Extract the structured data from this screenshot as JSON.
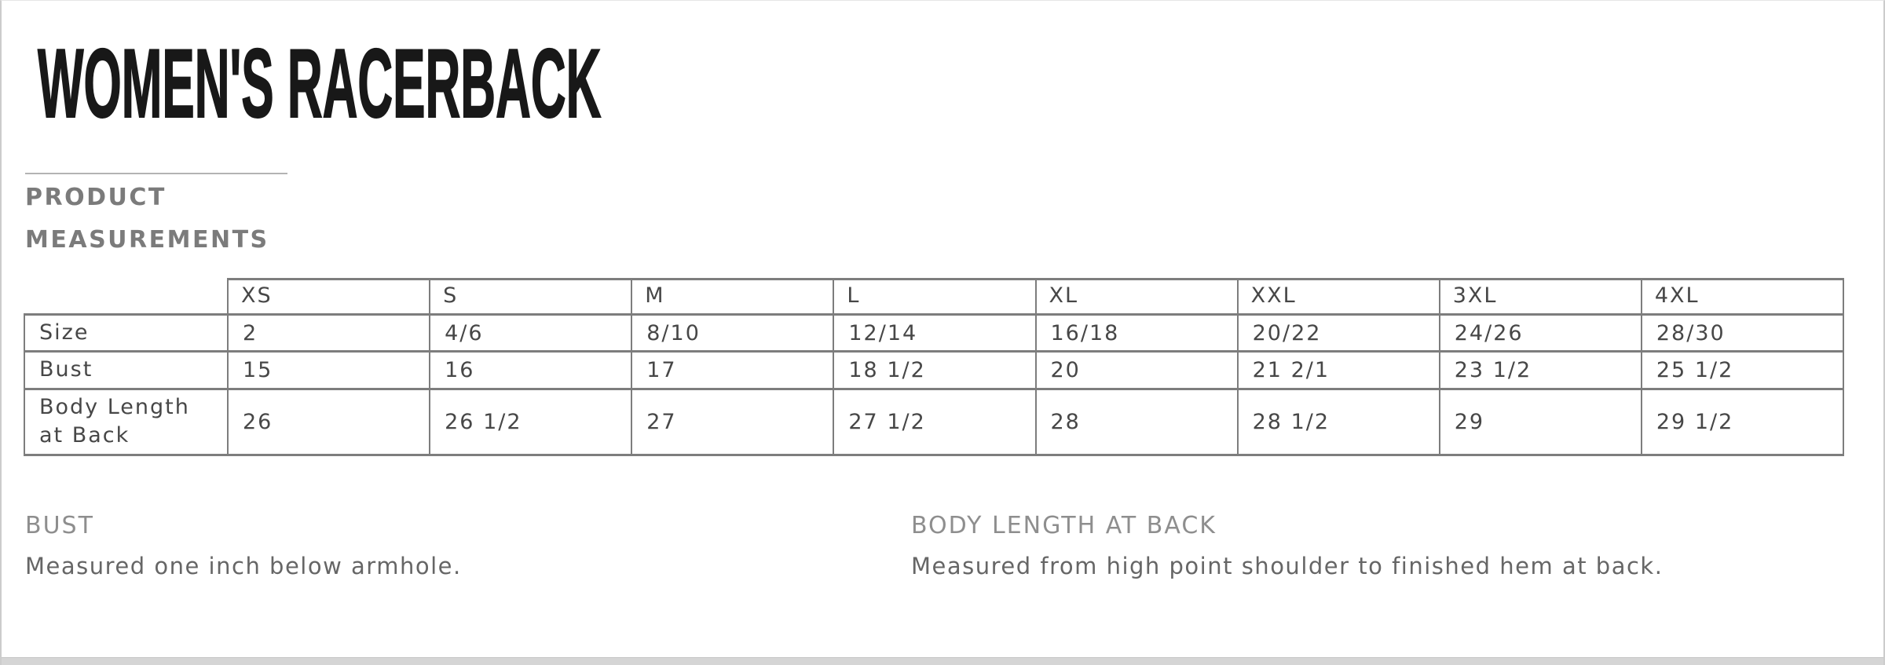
{
  "page": {
    "title": "WOMEN'S RACERBACK",
    "section_heading_line1": "PRODUCT",
    "section_heading_line2": "MEASUREMENTS"
  },
  "size_chart": {
    "columns": [
      "XS",
      "S",
      "M",
      "L",
      "XL",
      "XXL",
      "3XL",
      "4XL"
    ],
    "rows": [
      {
        "label": "Size",
        "values": [
          "2",
          "4/6",
          "8/10",
          "12/14",
          "16/18",
          "20/22",
          "24/26",
          "28/30"
        ]
      },
      {
        "label": "Bust",
        "values": [
          "15",
          "16",
          "17",
          "18 1/2",
          "20",
          "21 2/1",
          "23 1/2",
          "25 1/2"
        ]
      },
      {
        "label": "Body Length at Back",
        "values": [
          "26",
          "26 1/2",
          "27",
          "27 1/2",
          "28",
          "28 1/2",
          "29",
          "29 1/2"
        ]
      }
    ]
  },
  "notes": [
    {
      "heading": "BUST",
      "description": "Measured one inch below armhole."
    },
    {
      "heading": "BODY LENGTH AT BACK",
      "description": "Measured from high point shoulder to finished hem at back."
    }
  ],
  "colors": {
    "title_text": "#181818",
    "section_heading_text": "#7b7b7b",
    "table_border": "#7d7d7d",
    "table_text": "#474747",
    "note_heading_text": "#8e8e8e",
    "note_description_text": "#666666",
    "page_edge": "#cccccc",
    "bottom_strip": "#d5d5d5"
  }
}
